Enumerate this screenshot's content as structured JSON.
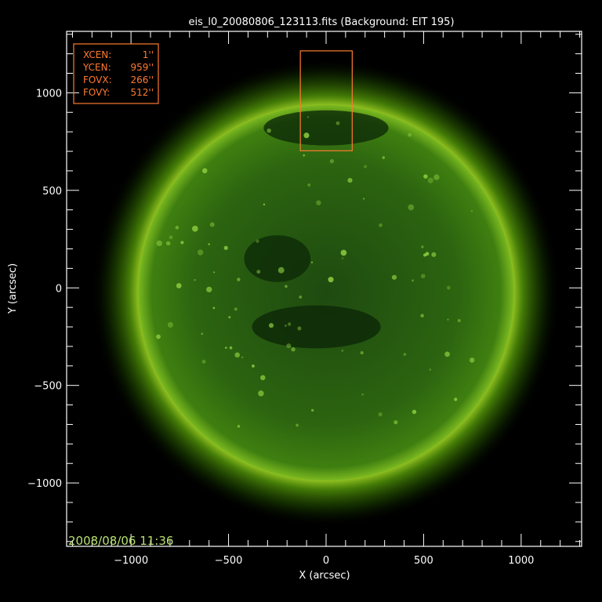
{
  "chart_data": {
    "type": "image",
    "title": "eis_l0_20080806_123113.fits  (Background: EIT 195)",
    "xlabel": "X (arcsec)",
    "ylabel": "Y (arcsec)",
    "xlim": [
      -1330,
      1310
    ],
    "ylim": [
      -1325,
      1315
    ],
    "xticks": [
      -1000,
      -500,
      0,
      500,
      1000
    ],
    "yticks": [
      -1000,
      -500,
      0,
      500,
      1000
    ],
    "xtick_labels": [
      "−1000",
      "−500",
      "0",
      "500",
      "1000"
    ],
    "ytick_labels": [
      "−1000",
      "−500",
      "0",
      "500",
      "1000"
    ],
    "minor_tick_step": 100,
    "background_image": {
      "description_source": "EIT 195",
      "solar_radius_arcsec": 962,
      "colormap": "green",
      "timestamp": "2008/08/06 11:36"
    },
    "fov_box": {
      "xcen": 1,
      "ycen": 959,
      "fovx": 266,
      "fovy": 512,
      "color": "#ff7a30"
    },
    "annotation": {
      "lines": [
        {
          "key": "XCEN:",
          "value": "1''"
        },
        {
          "key": "YCEN:",
          "value": "959''"
        },
        {
          "key": "FOVX:",
          "value": "266''"
        },
        {
          "key": "FOVY:",
          "value": "512''"
        }
      ]
    },
    "colors": {
      "axis": "#ffffff",
      "annotation": "#ff7a30",
      "timestamp": "#b8e070"
    }
  }
}
